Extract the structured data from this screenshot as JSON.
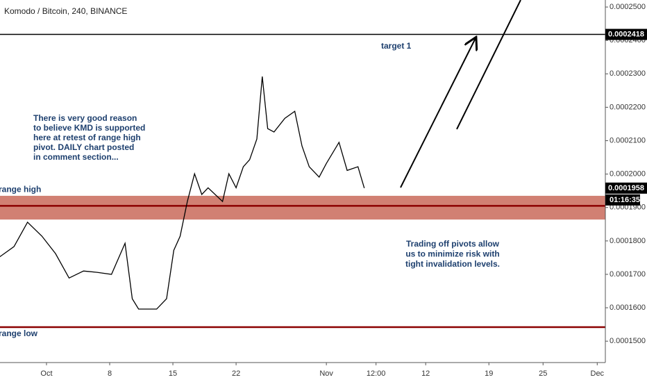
{
  "chart_data": {
    "type": "line",
    "title": "Komodo / Bitcoin, 240, BINANCE",
    "color": "#000000",
    "x": [
      -5.2,
      -3.6,
      -2.1,
      -0.5,
      1.0,
      2.5,
      4.1,
      5.6,
      7.2,
      8.7,
      9.5,
      10.2,
      11.0,
      12.2,
      13.3,
      14.1,
      14.8,
      15.6,
      16.4,
      17.2,
      17.9,
      19.5,
      20.2,
      21.0,
      21.8,
      22.5,
      23.3,
      23.9,
      24.5,
      25.2,
      26.4,
      27.5,
      28.3,
      29.1,
      30.2,
      31.0,
      32.4,
      33.3,
      34.5,
      35.2
    ],
    "values": [
      0.0001752,
      0.0001783,
      0.0001856,
      0.0001814,
      0.0001762,
      0.0001689,
      0.000171,
      0.0001706,
      0.00017,
      0.0001793,
      0.0001627,
      0.0001596,
      0.0001596,
      0.0001596,
      0.0001627,
      0.0001772,
      0.0001814,
      0.0001918,
      0.0002001,
      0.0001939,
      0.0001959,
      0.0001918,
      0.0002001,
      0.0001959,
      0.0002022,
      0.0002043,
      0.0002105,
      0.0002292,
      0.0002136,
      0.0002126,
      0.0002167,
      0.0002188,
      0.0002084,
      0.0002022,
      0.0001991,
      0.0002032,
      0.0002095,
      0.0002011,
      0.0002022,
      0.0001958
    ],
    "xlim": [
      -5.15,
      61.9
    ],
    "xticks": [
      {
        "value": 0,
        "label": "Oct"
      },
      {
        "value": 7,
        "label": "8"
      },
      {
        "value": 14,
        "label": "15"
      },
      {
        "value": 21,
        "label": "22"
      },
      {
        "value": 31,
        "label": "Nov"
      },
      {
        "value": 36.5,
        "label": "12:00"
      },
      {
        "value": 42,
        "label": "12"
      },
      {
        "value": 49,
        "label": "19"
      },
      {
        "value": 55,
        "label": "25"
      },
      {
        "value": 61,
        "label": "Dec"
      }
    ],
    "ylim": [
      0.0001436,
      0.0002521
    ],
    "yticks": [
      {
        "value": 0.00025,
        "label": "0.0002500"
      },
      {
        "value": 0.00024,
        "label": "0.0002400"
      },
      {
        "value": 0.00023,
        "label": "0.0002300"
      },
      {
        "value": 0.00022,
        "label": "0.0002200"
      },
      {
        "value": 0.00021,
        "label": "0.0002100"
      },
      {
        "value": 0.0002,
        "label": "0.0002000"
      },
      {
        "value": 0.00019,
        "label": "0.0001900"
      },
      {
        "value": 0.00018,
        "label": "0.0001800"
      },
      {
        "value": 0.00017,
        "label": "0.0001700"
      },
      {
        "value": 0.00016,
        "label": "0.0001600"
      },
      {
        "value": 0.00015,
        "label": "0.0001500"
      }
    ],
    "target_line": {
      "value": 0.0002418,
      "color": "#000000"
    },
    "band": {
      "values": [
        0.0001864,
        0.0001935
      ],
      "color": "#c96a5a"
    },
    "range_high": {
      "label": "range high",
      "value": 0.0001905,
      "color": "#8b0000"
    },
    "range_low": {
      "label": "range low",
      "value": 0.0001542,
      "color": "#8b0000"
    },
    "countdown": "01:16:35",
    "target_label": "target 1",
    "note_1": [
      "There is very good reason",
      "to believe KMD is supported",
      "here at retest of range high",
      "pivot. DAILY chart posted",
      "in comment section..."
    ],
    "note_2": [
      "Trading off pivots allow",
      "us to minimize risk with",
      "tight invalidation levels."
    ]
  }
}
